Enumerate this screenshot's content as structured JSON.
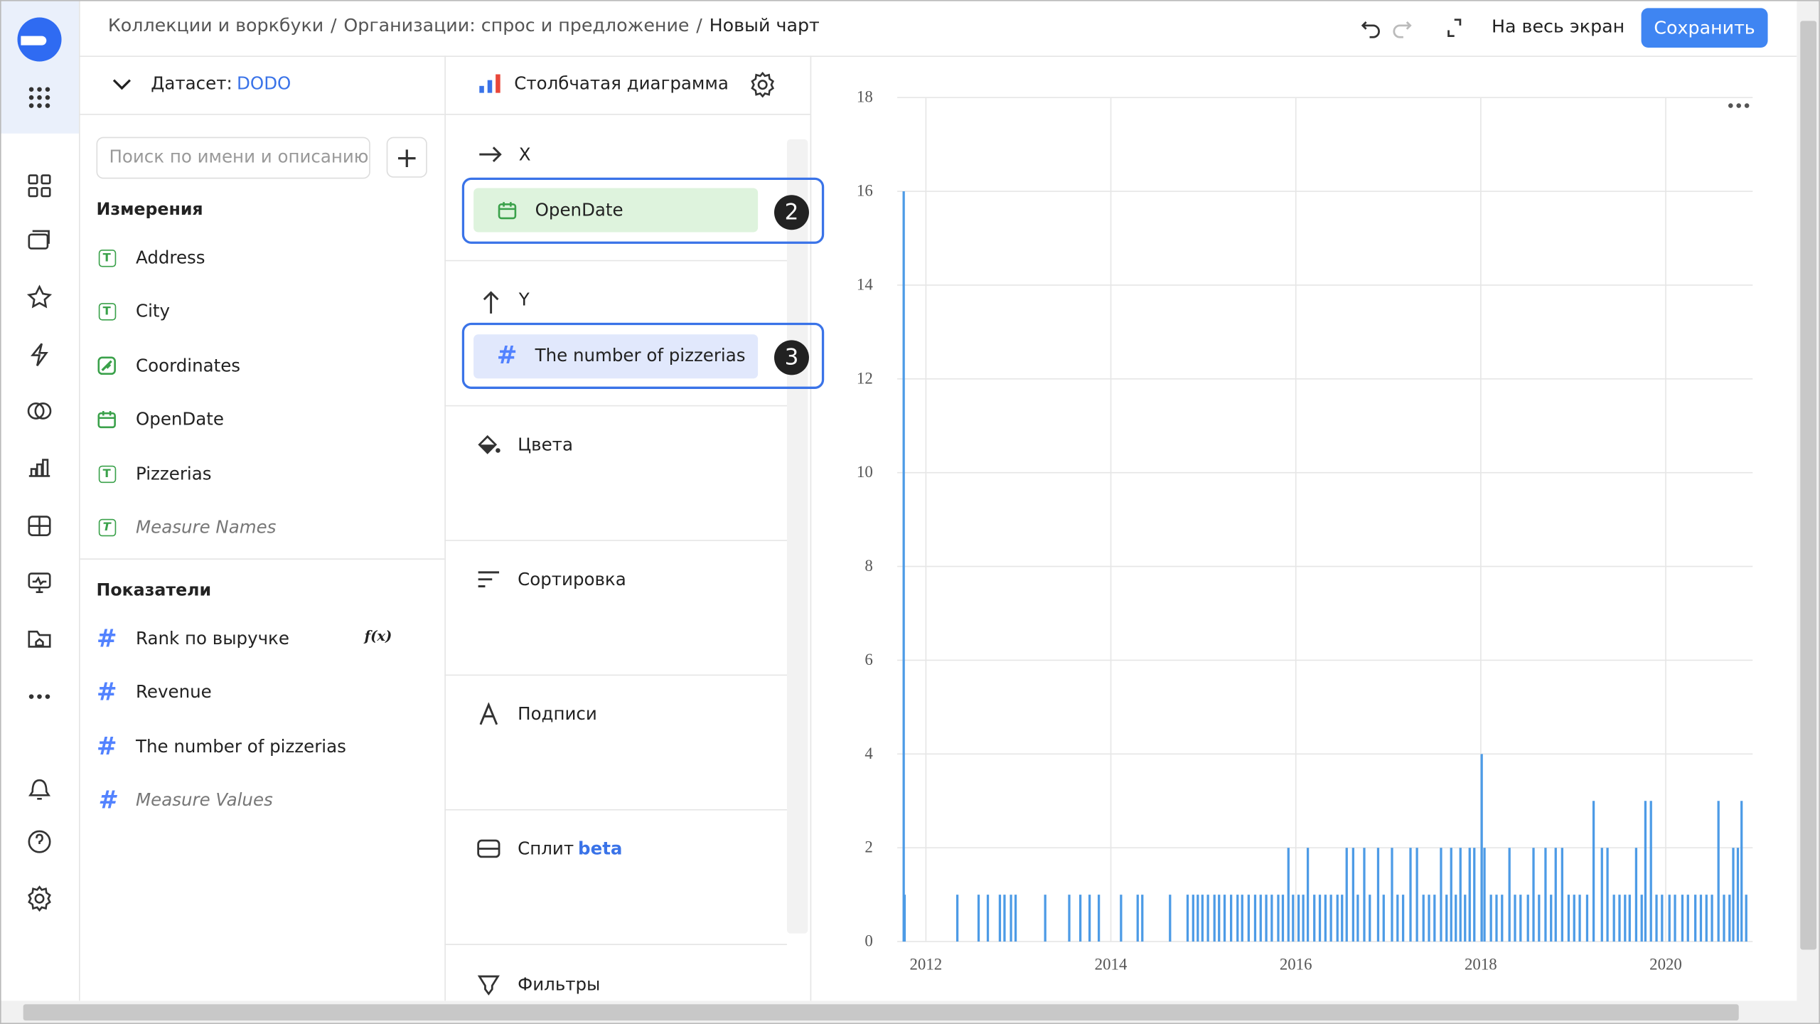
{
  "header": {
    "breadcrumbs": [
      "Коллекции и воркбуки",
      "Организации: спрос и предложение",
      "Новый чарт"
    ],
    "separator": "/",
    "fullscreen": "На весь экран",
    "save": "Сохранить"
  },
  "dataset": {
    "label": "Датасет:",
    "name": "DODO",
    "search_placeholder": "Поиск по имени и описанию",
    "dimensions_title": "Измерения",
    "dimensions": [
      "Address",
      "City",
      "Coordinates",
      "OpenDate",
      "Pizzerias",
      "Measure Names"
    ],
    "measures_title": "Показатели",
    "measures": [
      "Rank по выручке",
      "Revenue",
      "The number of pizzerias",
      "Measure Values"
    ]
  },
  "wizard": {
    "chart_type": "Столбчатая диаграмма",
    "x_label": "X",
    "x_field": "OpenDate",
    "x_badge": "2",
    "y_label": "Y",
    "y_field": "The number of pizzerias",
    "y_badge": "3",
    "colors": "Цвета",
    "sort": "Сортировка",
    "labels": "Подписи",
    "split": "Сплит",
    "split_tag": "beta",
    "filters": "Фильтры"
  },
  "chart": {
    "type": "bar",
    "color": "#4d9be6",
    "grid": true,
    "x": [
      2011.76,
      2011.77,
      2012.34,
      2012.57,
      2012.67,
      2012.8,
      2012.85,
      2012.92,
      2012.97,
      2013.29,
      2013.55,
      2013.67,
      2013.77,
      2013.87,
      2014.11,
      2014.29,
      2014.34,
      2014.64,
      2014.83,
      2014.89,
      2014.94,
      2014.99,
      2015.05,
      2015.12,
      2015.17,
      2015.23,
      2015.3,
      2015.37,
      2015.42,
      2015.49,
      2015.56,
      2015.62,
      2015.68,
      2015.74,
      2015.81,
      2015.86,
      2015.92,
      2015.97,
      2016.03,
      2016.08,
      2016.13,
      2016.2,
      2016.26,
      2016.32,
      2016.38,
      2016.45,
      2016.5,
      2016.55,
      2016.62,
      2016.67,
      2016.74,
      2016.8,
      2016.89,
      2016.95,
      2017.04,
      2017.1,
      2017.16,
      2017.24,
      2017.31,
      2017.38,
      2017.44,
      2017.5,
      2017.57,
      2017.63,
      2017.68,
      2017.73,
      2017.78,
      2017.83,
      2017.88,
      2017.93,
      2018.01,
      2018.04,
      2018.11,
      2018.17,
      2018.23,
      2018.31,
      2018.37,
      2018.43,
      2018.51,
      2018.57,
      2018.63,
      2018.7,
      2018.76,
      2018.81,
      2018.88,
      2018.95,
      2019.01,
      2019.07,
      2019.15,
      2019.22,
      2019.31,
      2019.37,
      2019.44,
      2019.5,
      2019.56,
      2019.61,
      2019.68,
      2019.74,
      2019.78,
      2019.84,
      2019.9,
      2019.96,
      2020.04,
      2020.1,
      2020.18,
      2020.24,
      2020.32,
      2020.38,
      2020.44,
      2020.5,
      2020.57,
      2020.63,
      2020.69,
      2020.73,
      2020.78,
      2020.82,
      2020.87
    ],
    "values": [
      16,
      1,
      1,
      1,
      1,
      1,
      1,
      1,
      1,
      1,
      1,
      1,
      1,
      1,
      1,
      1,
      1,
      1,
      1,
      1,
      1,
      1,
      1,
      1,
      1,
      1,
      1,
      1,
      1,
      1,
      1,
      1,
      1,
      1,
      1,
      1,
      2,
      1,
      1,
      1,
      2,
      1,
      1,
      1,
      1,
      1,
      1,
      2,
      2,
      1,
      2,
      1,
      2,
      1,
      2,
      1,
      1,
      2,
      2,
      1,
      1,
      1,
      2,
      1,
      2,
      1,
      2,
      1,
      2,
      2,
      4,
      2,
      1,
      1,
      1,
      2,
      1,
      1,
      1,
      2,
      1,
      2,
      1,
      2,
      2,
      1,
      1,
      1,
      1,
      3,
      2,
      2,
      1,
      1,
      1,
      1,
      2,
      1,
      3,
      3,
      1,
      1,
      1,
      1,
      1,
      1,
      1,
      1,
      1,
      1,
      3,
      1,
      1,
      2,
      2,
      3,
      1
    ],
    "xlim": [
      2011.69,
      2020.94
    ],
    "xticks": [
      2012,
      2014,
      2016,
      2018,
      2020
    ],
    "ylim": [
      0,
      18
    ],
    "yticks": [
      0,
      2,
      4,
      6,
      8,
      10,
      12,
      14,
      16,
      18
    ]
  }
}
